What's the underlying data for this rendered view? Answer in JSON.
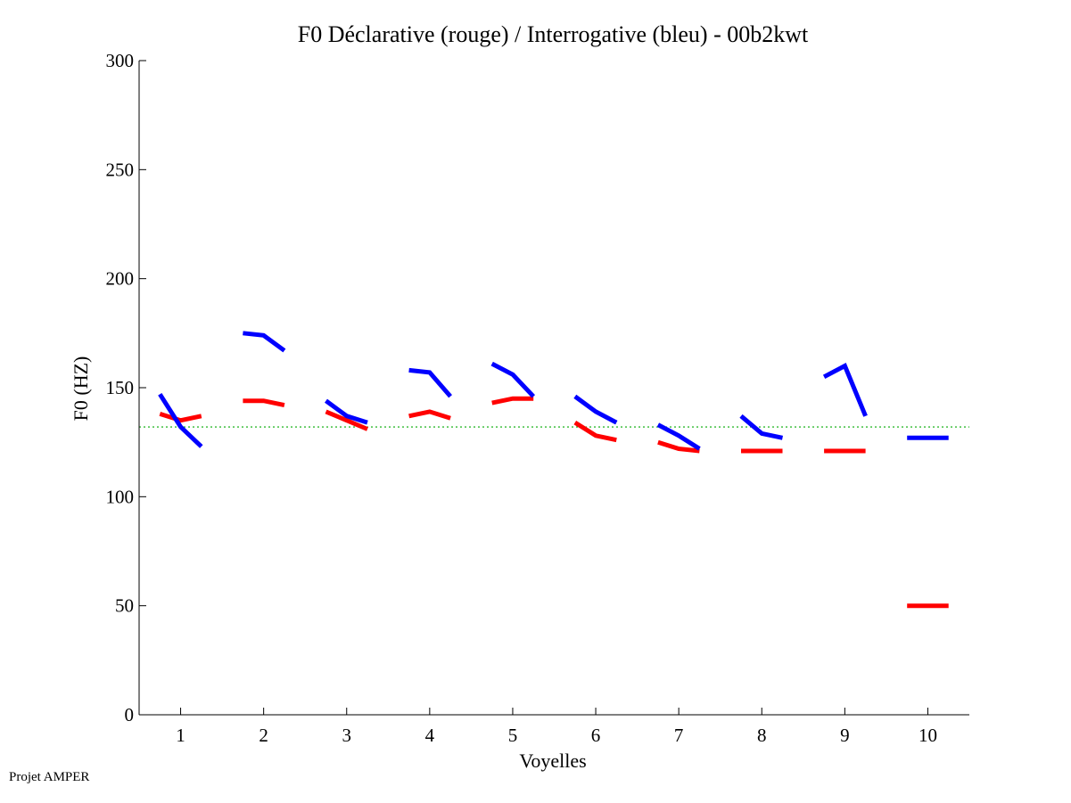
{
  "chart_data": {
    "type": "line",
    "title": "F0 Déclarative (rouge) / Interrogative (bleu) - 00b2kwt",
    "xlabel": "Voyelles",
    "ylabel": "F0 (HZ)",
    "xlim": [
      0.5,
      10.5
    ],
    "ylim": [
      0,
      300
    ],
    "xticks": [
      1,
      2,
      3,
      4,
      5,
      6,
      7,
      8,
      9,
      10
    ],
    "yticks": [
      0,
      50,
      100,
      150,
      200,
      250,
      300
    ],
    "reference_line": {
      "y": 132,
      "color": "#00aa00",
      "style": "dotted"
    },
    "series": [
      {
        "color": "#ff0000",
        "segments": [
          {
            "x": [
              0.75,
              1.0,
              1.25
            ],
            "y": [
              138,
              135,
              137
            ]
          },
          {
            "x": [
              1.75,
              2.0,
              2.25
            ],
            "y": [
              144,
              144,
              142
            ]
          },
          {
            "x": [
              2.75,
              3.0,
              3.25
            ],
            "y": [
              139,
              135,
              131
            ]
          },
          {
            "x": [
              3.75,
              4.0,
              4.25
            ],
            "y": [
              137,
              139,
              136
            ]
          },
          {
            "x": [
              4.75,
              5.0,
              5.25
            ],
            "y": [
              143,
              145,
              145
            ]
          },
          {
            "x": [
              5.75,
              6.0,
              6.25
            ],
            "y": [
              134,
              128,
              126
            ]
          },
          {
            "x": [
              6.75,
              7.0,
              7.25
            ],
            "y": [
              125,
              122,
              121
            ]
          },
          {
            "x": [
              7.75,
              8.0,
              8.25
            ],
            "y": [
              121,
              121,
              121
            ]
          },
          {
            "x": [
              8.75,
              9.0,
              9.25
            ],
            "y": [
              121,
              121,
              121
            ]
          },
          {
            "x": [
              9.75,
              10.0,
              10.25
            ],
            "y": [
              50,
              50,
              50
            ]
          }
        ]
      },
      {
        "color": "#0000ff",
        "segments": [
          {
            "x": [
              0.75,
              1.0,
              1.25
            ],
            "y": [
              147,
              132,
              123
            ]
          },
          {
            "x": [
              1.75,
              2.0,
              2.25
            ],
            "y": [
              175,
              174,
              167
            ]
          },
          {
            "x": [
              2.75,
              3.0,
              3.25
            ],
            "y": [
              144,
              137,
              134
            ]
          },
          {
            "x": [
              3.75,
              4.0,
              4.25
            ],
            "y": [
              158,
              157,
              146
            ]
          },
          {
            "x": [
              4.75,
              5.0,
              5.25
            ],
            "y": [
              161,
              156,
              146
            ]
          },
          {
            "x": [
              5.75,
              6.0,
              6.25
            ],
            "y": [
              146,
              139,
              134
            ]
          },
          {
            "x": [
              6.75,
              7.0,
              7.25
            ],
            "y": [
              133,
              128,
              122
            ]
          },
          {
            "x": [
              7.75,
              8.0,
              8.25
            ],
            "y": [
              137,
              129,
              127
            ]
          },
          {
            "x": [
              8.75,
              9.0,
              9.25
            ],
            "y": [
              155,
              160,
              137
            ]
          },
          {
            "x": [
              9.75,
              10.0,
              10.25
            ],
            "y": [
              127,
              127,
              127
            ]
          }
        ]
      }
    ]
  },
  "footer": {
    "text": "Projet AMPER"
  }
}
